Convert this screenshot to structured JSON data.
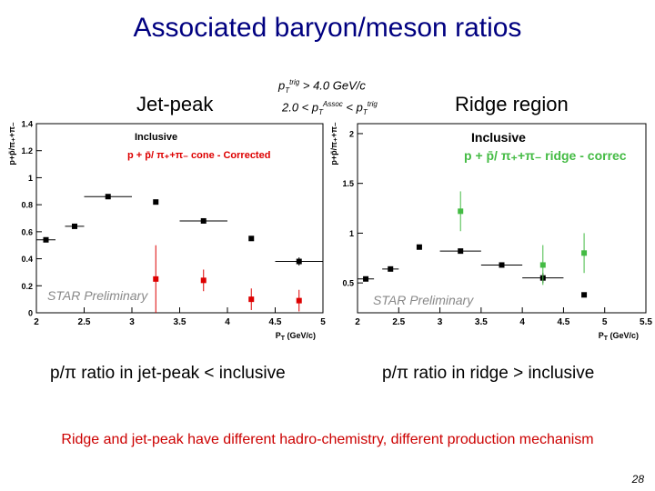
{
  "slide": {
    "title": "Associated baryon/meson ratios",
    "jet_peak_label": "Jet-peak",
    "ridge_label": "Ridge region",
    "cut_trig_text": "p",
    "cut_trig_sub": "T",
    "cut_trig_sup": "trig",
    "cut_trig_rest": " > 4.0 GeV/c",
    "cut_assoc_pre": "2.0 < p",
    "cut_assoc_sub": "T",
    "cut_assoc_sup": "Assoc",
    "cut_assoc_mid": " < p",
    "cut_assoc_sub2": "T",
    "cut_assoc_sup2": "trig",
    "caption_left": "p/π ratio in jet-peak < inclusive",
    "caption_right": "p/π ratio in ridge > inclusive",
    "conclusion": "Ridge and jet-peak have different hadro-chemistry, different production mechanism",
    "page_number": "28"
  },
  "colors": {
    "title": "#000080",
    "conclusion": "#cc0000",
    "inclusive": "#000000",
    "jet_corrected": "#dd0000",
    "ridge_corrected": "#44bb44"
  },
  "chart_data": [
    {
      "type": "scatter",
      "name": "jet-peak",
      "ylabel": "p+p̄/π₊+π₋",
      "xlabel": "P_T (GeV/c)",
      "xlim": [
        2,
        5
      ],
      "ylim": [
        0,
        1.4
      ],
      "xticks": [
        "2",
        "2.5",
        "3",
        "3.5",
        "4",
        "4.5",
        "5"
      ],
      "yticks": [
        "0",
        "0.2",
        "0.4",
        "0.6",
        "0.8",
        "1",
        "1.2",
        "1.4"
      ],
      "legend": [
        "Inclusive",
        "p + p̄/ π₊+π₋ cone - Corrected"
      ],
      "annotation": "STAR Preliminary",
      "series": [
        {
          "name": "Inclusive",
          "color": "#000000",
          "points": [
            {
              "x": 2.1,
              "y": 0.54,
              "xerr": 0.1
            },
            {
              "x": 2.4,
              "y": 0.64,
              "xerr": 0.1
            },
            {
              "x": 2.75,
              "y": 0.86,
              "xerr": 0.25
            },
            {
              "x": 3.25,
              "y": 0.82
            },
            {
              "x": 3.75,
              "y": 0.68,
              "xerr": 0.25
            },
            {
              "x": 4.25,
              "y": 0.55
            },
            {
              "x": 4.75,
              "y": 0.38,
              "xerr": 0.25,
              "yerr": 0.03
            }
          ]
        },
        {
          "name": "p + p̄/ π₊+π₋ cone - Corrected",
          "color": "#dd0000",
          "points": [
            {
              "x": 3.25,
              "y": 0.25,
              "yerr": 0.25
            },
            {
              "x": 3.75,
              "y": 0.24,
              "yerr": 0.08
            },
            {
              "x": 4.25,
              "y": 0.1,
              "yerr": 0.08
            },
            {
              "x": 4.75,
              "y": 0.09,
              "yerr": 0.08
            }
          ]
        }
      ]
    },
    {
      "type": "scatter",
      "name": "ridge",
      "ylabel": "p+p̄/π₊+π₋",
      "xlabel": "P_T (GeV/c)",
      "xlim": [
        2,
        5.5
      ],
      "ylim": [
        0.2,
        2.1
      ],
      "xticks": [
        "2",
        "2.5",
        "3",
        "3.5",
        "4",
        "4.5",
        "5",
        "5.5"
      ],
      "yticks": [
        "0.5",
        "1",
        "1.5",
        "2"
      ],
      "legend": [
        "Inclusive",
        "p + p̄/ π₊+π₋ ridge - correc"
      ],
      "annotation": "STAR Preliminary",
      "series": [
        {
          "name": "Inclusive",
          "color": "#000000",
          "points": [
            {
              "x": 2.1,
              "y": 0.54,
              "xerr": 0.1
            },
            {
              "x": 2.4,
              "y": 0.64,
              "xerr": 0.1
            },
            {
              "x": 2.75,
              "y": 0.86
            },
            {
              "x": 3.25,
              "y": 0.82,
              "xerr": 0.25
            },
            {
              "x": 3.75,
              "y": 0.68,
              "xerr": 0.25
            },
            {
              "x": 4.25,
              "y": 0.55,
              "xerr": 0.25,
              "yerr": 0.05
            },
            {
              "x": 4.75,
              "y": 0.38
            }
          ]
        },
        {
          "name": "p + p̄/ π₊+π₋ ridge - correc",
          "color": "#44bb44",
          "points": [
            {
              "x": 3.25,
              "y": 1.22,
              "yerr": 0.2
            },
            {
              "x": 4.25,
              "y": 0.68,
              "yerr": 0.2
            },
            {
              "x": 4.75,
              "y": 0.8,
              "yerr": 0.2
            }
          ]
        }
      ]
    }
  ]
}
